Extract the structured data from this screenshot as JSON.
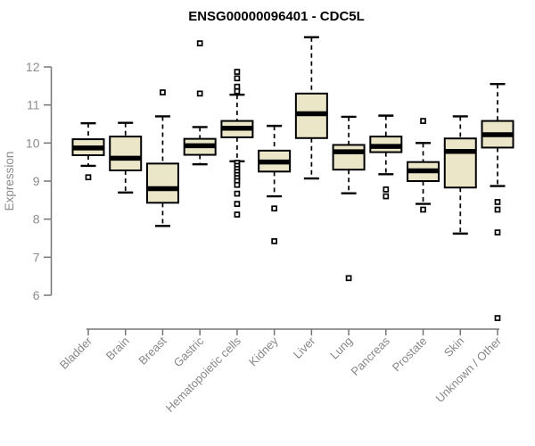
{
  "title": "ENSG00000096401 - CDC5L",
  "colors": {
    "box_fill": "#ebe6c8",
    "box_stroke": "#000000",
    "median": "#000000",
    "whisker": "#000000",
    "outlier_stroke": "#000000",
    "axis": "#757575",
    "axis_text": "#8c8c8c",
    "title_text": "#000000",
    "background": "#ffffff"
  },
  "chart_data": {
    "type": "boxplot",
    "title": "ENSG00000096401 - CDC5L",
    "xlabel": "",
    "ylabel": "Expression",
    "ylim": [
      6,
      12
    ],
    "y_ticks": [
      6,
      7,
      8,
      9,
      10,
      11,
      12
    ],
    "grid": "off",
    "categories": [
      "Bladder",
      "Brain",
      "Breast",
      "Gastric",
      "Hematopoietic cells",
      "Kidney",
      "Liver",
      "Lung",
      "Pancreas",
      "Prostate",
      "Skin",
      "Unknown / Other"
    ],
    "series": [
      {
        "name": "Bladder",
        "slug": "bladder",
        "whisker_low": 9.4,
        "q1": 9.68,
        "median": 9.87,
        "q3": 10.1,
        "whisker_high": 10.52,
        "outliers": [
          9.1
        ]
      },
      {
        "name": "Brain",
        "slug": "brain",
        "whisker_low": 8.7,
        "q1": 9.28,
        "median": 9.6,
        "q3": 10.17,
        "whisker_high": 10.53,
        "outliers": []
      },
      {
        "name": "Breast",
        "slug": "breast",
        "whisker_low": 7.82,
        "q1": 8.43,
        "median": 8.8,
        "q3": 9.46,
        "whisker_high": 10.7,
        "outliers": [
          11.33
        ]
      },
      {
        "name": "Gastric",
        "slug": "gastric",
        "whisker_low": 9.44,
        "q1": 9.69,
        "median": 9.93,
        "q3": 10.11,
        "whisker_high": 10.42,
        "outliers": [
          12.62,
          11.3
        ]
      },
      {
        "name": "Hematopoietic cells",
        "slug": "hematopoietic-cells",
        "whisker_low": 9.52,
        "q1": 10.15,
        "median": 10.39,
        "q3": 10.58,
        "whisker_high": 11.27,
        "outliers": [
          11.87,
          11.7,
          11.48,
          11.36,
          9.48,
          9.4,
          9.32,
          9.24,
          9.16,
          9.08,
          9.0,
          8.9,
          8.67,
          8.4,
          8.12
        ]
      },
      {
        "name": "Kidney",
        "slug": "kidney",
        "whisker_low": 8.6,
        "q1": 9.25,
        "median": 9.5,
        "q3": 9.8,
        "whisker_high": 10.45,
        "outliers": [
          8.28,
          7.42
        ]
      },
      {
        "name": "Liver",
        "slug": "liver",
        "whisker_low": 9.07,
        "q1": 10.13,
        "median": 10.77,
        "q3": 11.3,
        "whisker_high": 12.78,
        "outliers": []
      },
      {
        "name": "Lung",
        "slug": "lung",
        "whisker_low": 8.68,
        "q1": 9.3,
        "median": 9.77,
        "q3": 9.95,
        "whisker_high": 10.69,
        "outliers": [
          6.45
        ]
      },
      {
        "name": "Pancreas",
        "slug": "pancreas",
        "whisker_low": 9.18,
        "q1": 9.76,
        "median": 9.91,
        "q3": 10.17,
        "whisker_high": 10.72,
        "outliers": [
          8.78,
          8.6
        ]
      },
      {
        "name": "Prostate",
        "slug": "prostate",
        "whisker_low": 8.4,
        "q1": 9.0,
        "median": 9.27,
        "q3": 9.5,
        "whisker_high": 10.0,
        "outliers": [
          10.58,
          8.25
        ]
      },
      {
        "name": "Skin",
        "slug": "skin",
        "whisker_low": 7.62,
        "q1": 8.83,
        "median": 9.78,
        "q3": 10.12,
        "whisker_high": 10.7,
        "outliers": []
      },
      {
        "name": "Unknown / Other",
        "slug": "unknown-other",
        "whisker_low": 8.87,
        "q1": 9.88,
        "median": 10.22,
        "q3": 10.58,
        "whisker_high": 11.55,
        "outliers": [
          8.45,
          8.25,
          7.65,
          5.4
        ]
      }
    ]
  }
}
